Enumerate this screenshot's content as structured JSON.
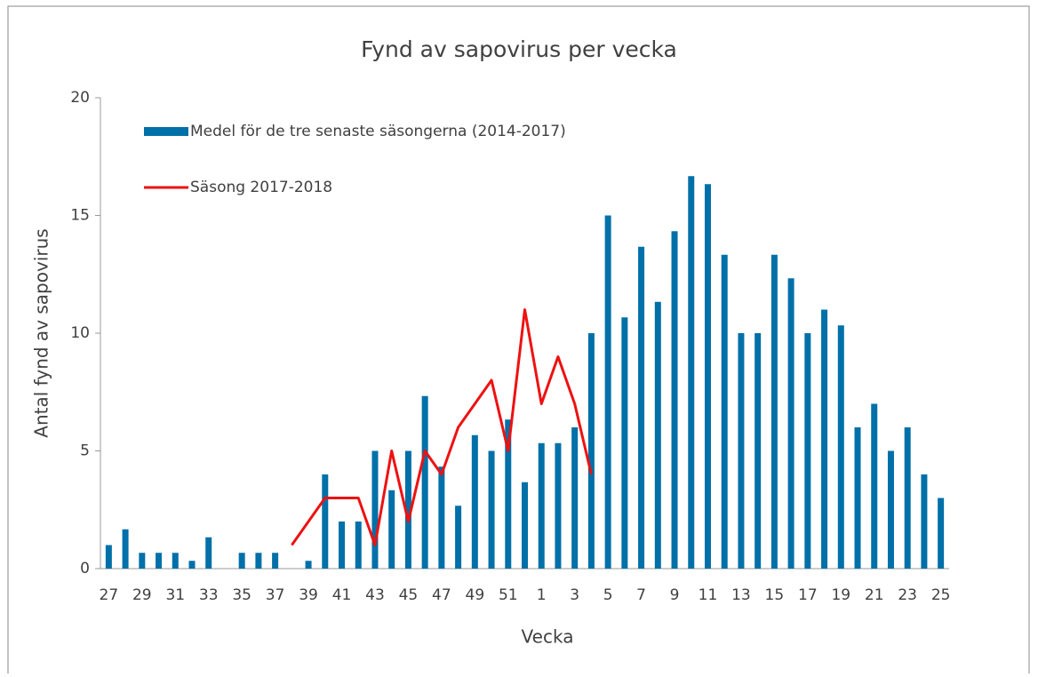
{
  "chart_data": {
    "type": "bar-line",
    "title": "Fynd av sapovirus per vecka",
    "x_label": "Vecka",
    "y_label": "Antal fynd av sapovirus",
    "categories": [
      "27",
      null,
      "29",
      null,
      "31",
      null,
      "33",
      null,
      "35",
      null,
      "37",
      null,
      "39",
      null,
      "41",
      null,
      "43",
      null,
      "45",
      null,
      "47",
      null,
      "49",
      null,
      "51",
      null,
      "1",
      null,
      "3",
      null,
      "5",
      null,
      "7",
      null,
      "9",
      null,
      "11",
      null,
      "13",
      null,
      "15",
      null,
      "17",
      null,
      "19",
      null,
      "21",
      null,
      "23",
      null,
      "25"
    ],
    "series": [
      {
        "name": "Medel för de tre senaste säsongerna (2014-2017)",
        "kind": "bar",
        "color": "#0070a8",
        "values": [
          1,
          1.67,
          0.67,
          0.67,
          0.67,
          0.33,
          1.33,
          0,
          0.67,
          0.67,
          0.67,
          0,
          0.33,
          4,
          2,
          2,
          5,
          3.33,
          5,
          7.33,
          4.33,
          2.67,
          5.67,
          5,
          6.33,
          3.67,
          5.33,
          5.33,
          6,
          10,
          15,
          10.67,
          13.67,
          11.33,
          14.33,
          16.67,
          16.33,
          13.33,
          10,
          10,
          13.33,
          12.33,
          10,
          11,
          10.33,
          6,
          7,
          5,
          6,
          4,
          3
        ]
      },
      {
        "name": "Säsong 2017-2018",
        "kind": "line",
        "color": "#ee1111",
        "values": [
          null,
          null,
          null,
          null,
          null,
          null,
          null,
          null,
          null,
          null,
          null,
          1,
          2,
          3,
          3,
          3,
          1,
          5,
          2,
          5,
          4,
          6,
          7,
          8,
          5,
          11,
          7,
          9,
          7,
          4,
          null,
          null,
          null,
          null,
          null,
          null,
          null,
          null,
          null,
          null,
          null,
          null,
          null,
          null,
          null,
          null,
          null,
          null,
          null,
          null,
          null
        ]
      }
    ],
    "ylim": [
      0,
      20
    ],
    "yticks": [
      0,
      5,
      10,
      15,
      20
    ],
    "legend": "upper left"
  }
}
